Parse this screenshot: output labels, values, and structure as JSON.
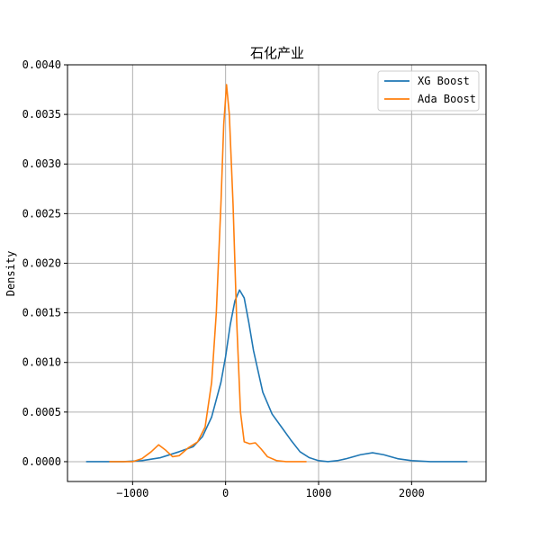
{
  "chart_data": {
    "type": "line",
    "title": "石化产业",
    "xlabel": "",
    "ylabel": "Density",
    "xlim": [
      -1700,
      2800
    ],
    "ylim": [
      -0.0002,
      0.004
    ],
    "xticks": [
      -1000,
      0,
      1000,
      2000
    ],
    "xtick_labels": [
      "−1000",
      "0",
      "1000",
      "2000"
    ],
    "yticks": [
      0.0,
      0.0005,
      0.001,
      0.0015,
      0.002,
      0.0025,
      0.003,
      0.0035,
      0.004
    ],
    "ytick_labels": [
      "0.0000",
      "0.0005",
      "0.0010",
      "0.0015",
      "0.0020",
      "0.0025",
      "0.0030",
      "0.0035",
      "0.0040"
    ],
    "grid": true,
    "legend_position": "upper right",
    "series": [
      {
        "name": "XG Boost",
        "color": "#1f77b4",
        "points": [
          [
            -1500,
            0.0
          ],
          [
            -1100,
            0.0
          ],
          [
            -900,
            1e-05
          ],
          [
            -700,
            4e-05
          ],
          [
            -500,
            0.0001
          ],
          [
            -350,
            0.00015
          ],
          [
            -250,
            0.00025
          ],
          [
            -150,
            0.00045
          ],
          [
            -50,
            0.0008
          ],
          [
            0,
            0.00106
          ],
          [
            50,
            0.00138
          ],
          [
            100,
            0.00162
          ],
          [
            150,
            0.00173
          ],
          [
            200,
            0.00165
          ],
          [
            250,
            0.0014
          ],
          [
            300,
            0.00112
          ],
          [
            400,
            0.0007
          ],
          [
            500,
            0.00048
          ],
          [
            600,
            0.00035
          ],
          [
            700,
            0.00022
          ],
          [
            800,
            0.0001
          ],
          [
            900,
            4e-05
          ],
          [
            1000,
            1e-05
          ],
          [
            1100,
            0.0
          ],
          [
            1200,
            1e-05
          ],
          [
            1300,
            3e-05
          ],
          [
            1450,
            7e-05
          ],
          [
            1580,
            9e-05
          ],
          [
            1700,
            7e-05
          ],
          [
            1850,
            3e-05
          ],
          [
            2000,
            1e-05
          ],
          [
            2200,
            0.0
          ],
          [
            2600,
            0.0
          ]
        ]
      },
      {
        "name": "Ada Boost",
        "color": "#ff7f0e",
        "points": [
          [
            -1250,
            0.0
          ],
          [
            -1000,
            0.0
          ],
          [
            -900,
            3e-05
          ],
          [
            -800,
            0.0001
          ],
          [
            -720,
            0.00017
          ],
          [
            -650,
            0.00012
          ],
          [
            -570,
            5e-05
          ],
          [
            -500,
            6e-05
          ],
          [
            -400,
            0.00014
          ],
          [
            -300,
            0.0002
          ],
          [
            -220,
            0.00035
          ],
          [
            -150,
            0.0008
          ],
          [
            -100,
            0.0015
          ],
          [
            -50,
            0.0026
          ],
          [
            -20,
            0.0034
          ],
          [
            10,
            0.0038
          ],
          [
            40,
            0.0035
          ],
          [
            80,
            0.0026
          ],
          [
            120,
            0.0014
          ],
          [
            160,
            0.0005
          ],
          [
            200,
            0.0002
          ],
          [
            260,
            0.00018
          ],
          [
            320,
            0.00019
          ],
          [
            380,
            0.00013
          ],
          [
            450,
            5e-05
          ],
          [
            550,
            1e-05
          ],
          [
            650,
            0.0
          ],
          [
            870,
            0.0
          ]
        ]
      }
    ]
  }
}
